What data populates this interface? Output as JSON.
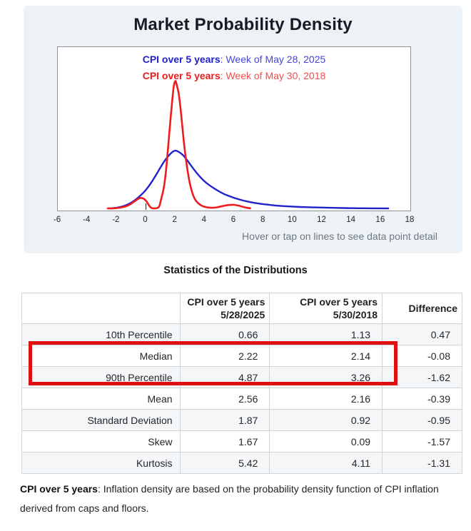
{
  "page": {
    "title": "Market Probability Density",
    "hover_hint": "Hover or tap on lines to see data point detail",
    "stats_heading": "Statistics of the Distributions",
    "footnote": {
      "term": "CPI over 5 years",
      "rest": ": Inflation density are based on the probability density function of CPI inflation derived from caps and floors."
    }
  },
  "chart_data": {
    "type": "line",
    "title": "",
    "xlabel": "",
    "ylabel": "",
    "xlim": [
      -6,
      18
    ],
    "ylim": [
      0,
      1
    ],
    "grid": false,
    "legend_position": "top-center",
    "x_ticks": [
      -6,
      -4,
      -2,
      0,
      2,
      4,
      6,
      8,
      10,
      12,
      14,
      16,
      18
    ],
    "y_unit": "relative probability density (fraction of plot height, no y axis shown)",
    "series": [
      {
        "name": "CPI over 5 years",
        "label_rest": ": Week of May 28, 2025",
        "color": "#2222cc",
        "color2": "#4545d6",
        "points": [
          [
            -2.4,
            0
          ],
          [
            -2.0,
            0.004
          ],
          [
            -1.6,
            0.012
          ],
          [
            -1.2,
            0.026
          ],
          [
            -0.8,
            0.048
          ],
          [
            -0.4,
            0.078
          ],
          [
            0,
            0.115
          ],
          [
            0.4,
            0.165
          ],
          [
            0.8,
            0.225
          ],
          [
            1.2,
            0.285
          ],
          [
            1.5,
            0.322
          ],
          [
            1.8,
            0.35
          ],
          [
            2.0,
            0.358
          ],
          [
            2.2,
            0.352
          ],
          [
            2.5,
            0.332
          ],
          [
            2.8,
            0.3
          ],
          [
            3.1,
            0.262
          ],
          [
            3.5,
            0.215
          ],
          [
            3.9,
            0.175
          ],
          [
            4.3,
            0.145
          ],
          [
            4.8,
            0.115
          ],
          [
            5.3,
            0.09
          ],
          [
            5.8,
            0.072
          ],
          [
            6.3,
            0.057
          ],
          [
            6.8,
            0.045
          ],
          [
            7.4,
            0.034
          ],
          [
            8.0,
            0.026
          ],
          [
            8.8,
            0.018
          ],
          [
            9.6,
            0.013
          ],
          [
            10.5,
            0.009
          ],
          [
            11.5,
            0.006
          ],
          [
            12.5,
            0.004
          ],
          [
            13.5,
            0.002
          ],
          [
            14.5,
            0.001
          ],
          [
            15.5,
            0.0005
          ],
          [
            16.5,
            0
          ]
        ]
      },
      {
        "name": "CPI over 5 years",
        "label_rest": ": Week of May 30, 2018",
        "color": "#ee1c1c",
        "color2": "#f24e4e",
        "points": [
          [
            -2.6,
            0
          ],
          [
            -2.2,
            0.001
          ],
          [
            -1.8,
            0.004
          ],
          [
            -1.4,
            0.012
          ],
          [
            -1.1,
            0.024
          ],
          [
            -0.8,
            0.042
          ],
          [
            -0.55,
            0.058
          ],
          [
            -0.35,
            0.065
          ],
          [
            -0.15,
            0.06
          ],
          [
            0.05,
            0.042
          ],
          [
            0.2,
            0.02
          ],
          [
            0.32,
            0.006
          ],
          [
            0.45,
            0.001
          ],
          [
            0.6,
            0
          ],
          [
            0.75,
            0.002
          ],
          [
            0.9,
            0.012
          ],
          [
            1.0,
            0.045
          ],
          [
            1.2,
            0.12
          ],
          [
            1.35,
            0.22
          ],
          [
            1.5,
            0.37
          ],
          [
            1.65,
            0.53
          ],
          [
            1.8,
            0.68
          ],
          [
            1.9,
            0.76
          ],
          [
            2.0,
            0.79
          ],
          [
            2.1,
            0.765
          ],
          [
            2.25,
            0.7
          ],
          [
            2.4,
            0.58
          ],
          [
            2.55,
            0.44
          ],
          [
            2.7,
            0.32
          ],
          [
            2.85,
            0.225
          ],
          [
            3.0,
            0.15
          ],
          [
            3.2,
            0.085
          ],
          [
            3.4,
            0.048
          ],
          [
            3.7,
            0.022
          ],
          [
            4.0,
            0.01
          ],
          [
            4.4,
            0.004
          ],
          [
            4.8,
            0.006
          ],
          [
            5.2,
            0.014
          ],
          [
            5.6,
            0.021
          ],
          [
            6.0,
            0.022
          ],
          [
            6.4,
            0.015
          ],
          [
            6.8,
            0.005
          ],
          [
            7.1,
            0.001
          ]
        ]
      }
    ],
    "annotations": [
      "small axis tick mark at x = 0"
    ]
  },
  "stats_table": {
    "columns": [
      {
        "line1": "",
        "line2": ""
      },
      {
        "line1": "CPI over 5 years",
        "line2": "5/28/2025"
      },
      {
        "line1": "CPI over 5 years",
        "line2": "5/30/2018"
      },
      {
        "line1": "Difference",
        "line2": ""
      }
    ],
    "rows": [
      {
        "label": "10th Percentile",
        "v2025": "0.66",
        "v2018": "1.13",
        "diff": "0.47"
      },
      {
        "label": "Median",
        "v2025": "2.22",
        "v2018": "2.14",
        "diff": "-0.08"
      },
      {
        "label": "90th Percentile",
        "v2025": "4.87",
        "v2018": "3.26",
        "diff": "-1.62"
      },
      {
        "label": "Mean",
        "v2025": "2.56",
        "v2018": "2.16",
        "diff": "-0.39"
      },
      {
        "label": "Standard Deviation",
        "v2025": "1.87",
        "v2018": "0.92",
        "diff": "-0.95"
      },
      {
        "label": "Skew",
        "v2025": "1.67",
        "v2018": "0.09",
        "diff": "-1.57"
      },
      {
        "label": "Kurtosis",
        "v2025": "5.42",
        "v2018": "4.11",
        "diff": "-1.31"
      }
    ],
    "highlight": {
      "color": "#dd1111",
      "rows": [
        "Median",
        "90th Percentile"
      ]
    }
  }
}
